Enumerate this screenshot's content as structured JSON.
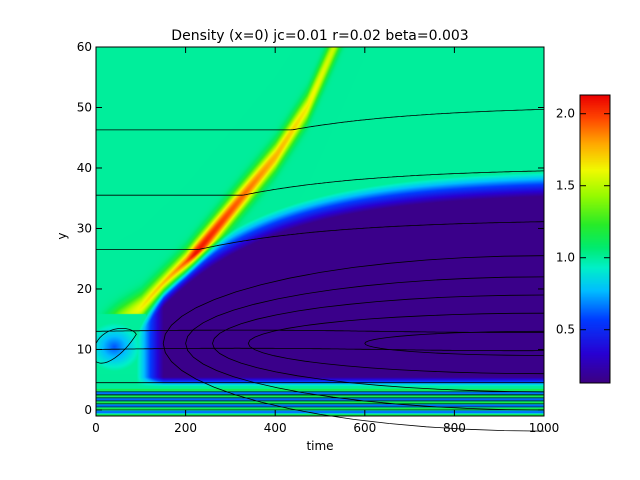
{
  "chart_data": {
    "type": "heatmap",
    "title": "Density (x=0) jc=0.01 r=0.02 beta=0.003",
    "xlabel": "time",
    "ylabel": "y",
    "xlim": [
      0,
      1000
    ],
    "ylim": [
      -1,
      60
    ],
    "x_ticks": [
      0,
      200,
      400,
      600,
      800,
      1000
    ],
    "y_ticks": [
      0,
      10,
      20,
      30,
      40,
      50,
      60
    ],
    "colorbar": {
      "range": [
        0.13,
        2.13
      ],
      "ticks": [
        0.5,
        1.0,
        1.5,
        2.0
      ],
      "tick_labels": [
        "0.5",
        "1.0",
        "1.5",
        "2.0"
      ],
      "colormap": "rainbow"
    },
    "features": {
      "background_density": 1.0,
      "front_peak_density": 2.1,
      "front_path": [
        [
          0,
          13
        ],
        [
          100,
          17
        ],
        [
          200,
          24
        ],
        [
          300,
          33
        ],
        [
          400,
          42
        ],
        [
          470,
          50
        ],
        [
          530,
          60
        ]
      ],
      "depleted_region": {
        "density": 0.15,
        "y_range": [
          4,
          40
        ],
        "starts_at_time": 120
      },
      "contour_levels_y_at_t0": [
        2.5,
        4.5,
        10,
        13,
        26.5,
        35.5,
        46.3
      ]
    }
  }
}
